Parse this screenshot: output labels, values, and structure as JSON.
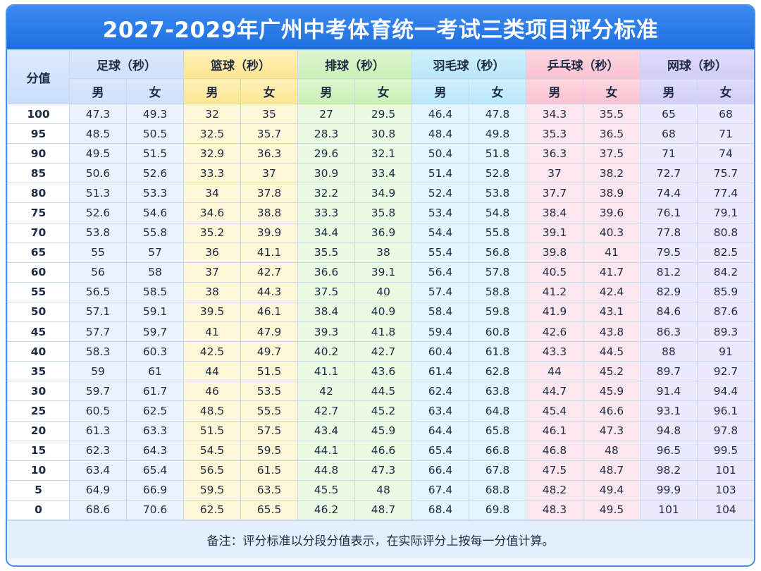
{
  "title": "2027-2029年广州中考体育统一考试三类项目评分标准",
  "score_header": "分值",
  "sports": [
    {
      "name": "足球（秒）",
      "male": "男",
      "female": "女"
    },
    {
      "name": "篮球（秒）",
      "male": "男",
      "female": "女"
    },
    {
      "name": "排球（秒）",
      "male": "男",
      "female": "女"
    },
    {
      "name": "羽毛球（秒）",
      "male": "男",
      "female": "女"
    },
    {
      "name": "乒乓球（秒）",
      "male": "男",
      "female": "女"
    },
    {
      "name": "网球（秒）",
      "male": "男",
      "female": "女"
    }
  ],
  "rows": [
    [
      "100",
      "47.3",
      "49.3",
      "32",
      "35",
      "27",
      "29.5",
      "46.4",
      "47.8",
      "34.3",
      "35.5",
      "65",
      "68"
    ],
    [
      "95",
      "48.5",
      "50.5",
      "32.5",
      "35.7",
      "28.3",
      "30.8",
      "48.4",
      "49.8",
      "35.3",
      "36.5",
      "68",
      "71"
    ],
    [
      "90",
      "49.5",
      "51.5",
      "32.9",
      "36.3",
      "29.6",
      "32.1",
      "50.4",
      "51.8",
      "36.3",
      "37.5",
      "71",
      "74"
    ],
    [
      "85",
      "50.6",
      "52.6",
      "33.3",
      "37",
      "30.9",
      "33.4",
      "51.4",
      "52.8",
      "37",
      "38.2",
      "72.7",
      "75.7"
    ],
    [
      "80",
      "51.3",
      "53.3",
      "34",
      "37.8",
      "32.2",
      "34.9",
      "52.4",
      "53.8",
      "37.7",
      "38.9",
      "74.4",
      "77.4"
    ],
    [
      "75",
      "52.6",
      "54.6",
      "34.6",
      "38.8",
      "33.3",
      "35.8",
      "53.4",
      "54.8",
      "38.4",
      "39.6",
      "76.1",
      "79.1"
    ],
    [
      "70",
      "53.8",
      "55.8",
      "35.2",
      "39.9",
      "34.4",
      "36.9",
      "54.4",
      "55.8",
      "39.1",
      "40.3",
      "77.8",
      "80.8"
    ],
    [
      "65",
      "55",
      "57",
      "36",
      "41.1",
      "35.5",
      "38",
      "55.4",
      "56.8",
      "39.8",
      "41",
      "79.5",
      "82.5"
    ],
    [
      "60",
      "56",
      "58",
      "37",
      "42.7",
      "36.6",
      "39.1",
      "56.4",
      "57.8",
      "40.5",
      "41.7",
      "81.2",
      "84.2"
    ],
    [
      "55",
      "56.5",
      "58.5",
      "38",
      "44.3",
      "37.5",
      "40",
      "57.4",
      "58.8",
      "41.2",
      "42.4",
      "82.9",
      "85.9"
    ],
    [
      "50",
      "57.1",
      "59.1",
      "39.5",
      "46.1",
      "38.4",
      "40.9",
      "58.4",
      "59.8",
      "41.9",
      "43.1",
      "84.6",
      "87.6"
    ],
    [
      "45",
      "57.7",
      "59.7",
      "41",
      "47.9",
      "39.3",
      "41.8",
      "59.4",
      "60.8",
      "42.6",
      "43.8",
      "86.3",
      "89.3"
    ],
    [
      "40",
      "58.3",
      "60.3",
      "42.5",
      "49.7",
      "40.2",
      "42.7",
      "60.4",
      "61.8",
      "43.3",
      "44.5",
      "88",
      "91"
    ],
    [
      "35",
      "59",
      "61",
      "44",
      "51.5",
      "41.1",
      "43.6",
      "61.4",
      "62.8",
      "44",
      "45.2",
      "89.7",
      "92.7"
    ],
    [
      "30",
      "59.7",
      "61.7",
      "46",
      "53.5",
      "42",
      "44.5",
      "62.4",
      "63.8",
      "44.7",
      "45.9",
      "91.4",
      "94.4"
    ],
    [
      "25",
      "60.5",
      "62.5",
      "48.5",
      "55.5",
      "42.7",
      "45.2",
      "63.4",
      "64.8",
      "45.4",
      "46.6",
      "93.1",
      "96.1"
    ],
    [
      "20",
      "61.3",
      "63.3",
      "51.5",
      "57.5",
      "43.4",
      "45.9",
      "64.4",
      "65.8",
      "46.1",
      "47.3",
      "94.8",
      "97.8"
    ],
    [
      "15",
      "62.3",
      "64.3",
      "54.5",
      "59.5",
      "44.1",
      "46.6",
      "65.4",
      "66.8",
      "46.8",
      "48",
      "96.5",
      "99.5"
    ],
    [
      "10",
      "63.4",
      "65.4",
      "56.5",
      "61.5",
      "44.8",
      "47.3",
      "66.4",
      "67.8",
      "47.5",
      "48.7",
      "98.2",
      "101"
    ],
    [
      "5",
      "64.9",
      "66.9",
      "59.5",
      "63.5",
      "45.5",
      "48",
      "67.4",
      "68.8",
      "48.2",
      "49.4",
      "99.9",
      "103"
    ],
    [
      "0",
      "68.6",
      "70.6",
      "62.5",
      "65.5",
      "46.2",
      "48.7",
      "68.4",
      "69.8",
      "48.3",
      "49.5",
      "101",
      "104"
    ]
  ],
  "note": "备注：评分标准以分段分值表示，在实际评分上按每一分值计算。"
}
